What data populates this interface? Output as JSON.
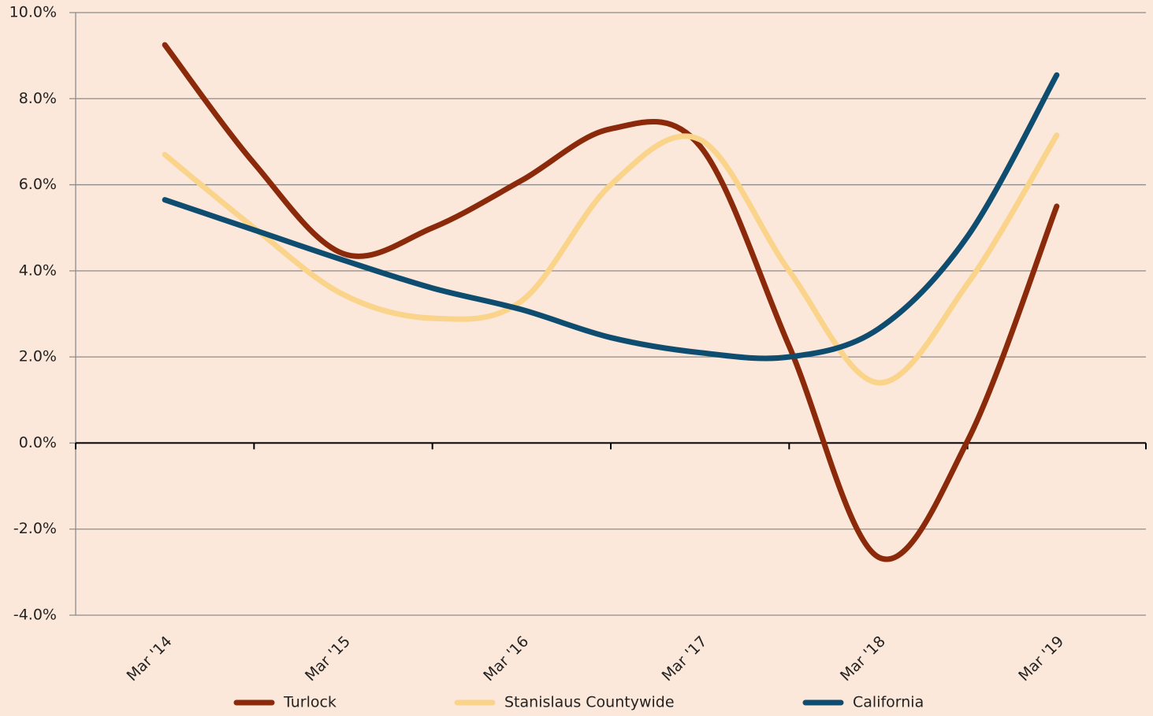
{
  "chart_data": {
    "type": "line",
    "categories": [
      "Mar '14",
      null,
      "Mar '15",
      null,
      "Mar '16",
      null,
      "Mar '17",
      null,
      "Mar '18",
      null,
      "Mar '19"
    ],
    "series": [
      {
        "name": "Turlock",
        "color": "#8b2a0a",
        "values": [
          9.25,
          6.5,
          4.4,
          5.0,
          6.1,
          7.3,
          6.9,
          2.25,
          -2.65,
          0.05,
          5.5
        ]
      },
      {
        "name": "Stanislaus Countywide",
        "color": "#f9d48a",
        "values": [
          6.7,
          5.0,
          3.45,
          2.9,
          3.3,
          6.0,
          7.05,
          4.0,
          1.4,
          3.7,
          7.15
        ]
      },
      {
        "name": "California",
        "color": "#0f4d70",
        "values": [
          5.65,
          4.95,
          4.25,
          3.6,
          3.1,
          2.45,
          2.1,
          2.0,
          2.65,
          4.8,
          8.55
        ]
      }
    ],
    "ylim": [
      -4,
      10
    ],
    "yticks": [
      {
        "value": -4,
        "label": "-4.0%"
      },
      {
        "value": -2,
        "label": "-2.0%"
      },
      {
        "value": 0,
        "label": "0.0%"
      },
      {
        "value": 2,
        "label": "2.0%"
      },
      {
        "value": 4,
        "label": "4.0%"
      },
      {
        "value": 6,
        "label": "6.0%"
      },
      {
        "value": 8,
        "label": "8.0%"
      },
      {
        "value": 10,
        "label": "10.0%"
      }
    ],
    "grid": true,
    "smooth": true,
    "legend": "bottom"
  }
}
